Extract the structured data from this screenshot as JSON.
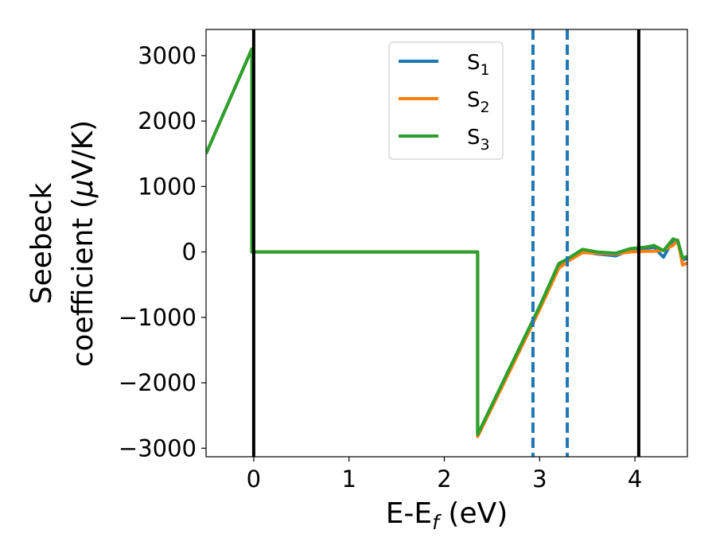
{
  "chart_data": {
    "type": "line",
    "title": "",
    "xlabel": {
      "base": "E-E",
      "sub": "f",
      "tail": " (eV)"
    },
    "ylabel": {
      "line1": "Seebeck",
      "line2": "coefficient  (",
      "mu": "μ",
      "line2_tail": "V/K)"
    },
    "xlim": [
      -0.5,
      4.55
    ],
    "ylim": [
      -3130,
      3400
    ],
    "xticks": [
      0,
      1,
      2,
      3,
      4
    ],
    "yticks": [
      -3000,
      -2000,
      -1000,
      0,
      1000,
      2000,
      3000
    ],
    "ytick_labels": [
      "−3000",
      "−2000",
      "−1000",
      "0",
      "1000",
      "2000",
      "3000"
    ],
    "grid": false,
    "legend_position": "top-center",
    "vlines_solid": {
      "x": [
        0,
        4.04
      ],
      "color": "#000000"
    },
    "vlines_dashed": {
      "x": [
        2.93,
        3.29
      ],
      "color": "#1f77b4"
    },
    "series": [
      {
        "name": {
          "base": "S",
          "sub": "1"
        },
        "color": "#1f77b4",
        "x": [
          -0.5,
          -0.02,
          -0.02,
          2.35,
          2.35,
          2.7,
          3.0,
          3.2,
          3.3,
          3.45,
          3.6,
          3.8,
          3.95,
          4.1,
          4.2,
          4.3,
          4.4,
          4.45,
          4.5,
          4.55
        ],
        "y": [
          1500,
          3100,
          0,
          0,
          -2800,
          -1750,
          -850,
          -200,
          -120,
          10,
          -30,
          -60,
          30,
          50,
          70,
          -80,
          180,
          150,
          -120,
          -100
        ]
      },
      {
        "name": {
          "base": "S",
          "sub": "2"
        },
        "color": "#ff7f0e",
        "x": [
          -0.5,
          -0.02,
          -0.02,
          2.35,
          2.35,
          2.7,
          3.0,
          3.2,
          3.3,
          3.45,
          3.6,
          3.8,
          3.95,
          4.1,
          4.2,
          4.3,
          4.4,
          4.45,
          4.5,
          4.55
        ],
        "y": [
          1500,
          3100,
          0,
          0,
          -2820,
          -1780,
          -880,
          -250,
          -140,
          -10,
          -20,
          -30,
          0,
          10,
          10,
          30,
          100,
          180,
          -200,
          -170
        ]
      },
      {
        "name": {
          "base": "S",
          "sub": "3"
        },
        "color": "#2ca02c",
        "x": [
          -0.5,
          -0.02,
          -0.02,
          2.35,
          2.35,
          2.7,
          3.0,
          3.2,
          3.3,
          3.45,
          3.6,
          3.8,
          3.95,
          4.1,
          4.2,
          4.3,
          4.4,
          4.45,
          4.5,
          4.55
        ],
        "y": [
          1500,
          3100,
          0,
          0,
          -2790,
          -1730,
          -830,
          -180,
          -100,
          40,
          0,
          -20,
          50,
          70,
          100,
          20,
          200,
          170,
          -90,
          -70
        ]
      }
    ]
  }
}
